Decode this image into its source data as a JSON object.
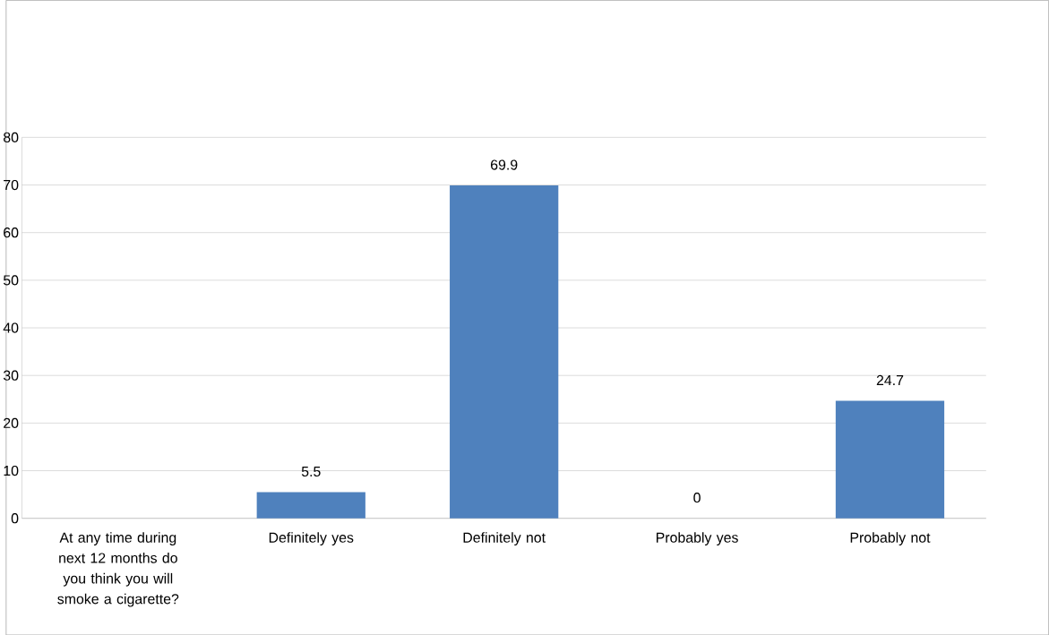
{
  "chart_data": {
    "type": "bar",
    "categories": [
      "At any time during next 12 months do you think you will smoke a cigarette?",
      "Definitely yes",
      "Definitely not",
      "Probably yes",
      "Probably not"
    ],
    "values": [
      null,
      5.5,
      69.9,
      0,
      24.7
    ],
    "color": "#4f81bd",
    "ylim": [
      0,
      80
    ],
    "yticks": [
      0,
      10,
      20,
      30,
      40,
      50,
      60,
      70,
      80
    ],
    "grid": "y",
    "data_labels": true
  }
}
